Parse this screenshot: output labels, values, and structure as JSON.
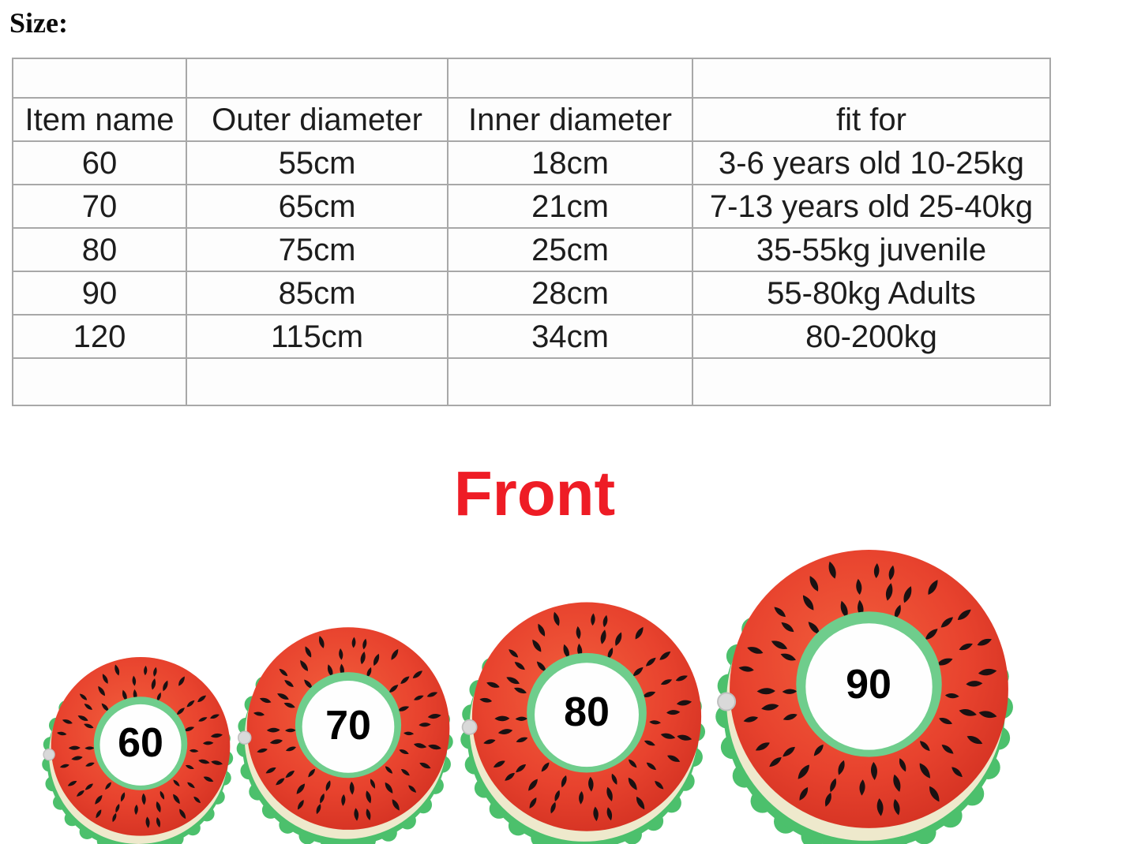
{
  "heading": "Size:",
  "size_table": {
    "headers": [
      "Item name",
      "Outer diameter",
      "Inner diameter",
      "fit for"
    ],
    "rows": [
      [
        "60",
        "55cm",
        "18cm",
        "3-6 years old 10-25kg"
      ],
      [
        "70",
        "65cm",
        "21cm",
        "7-13 years old 25-40kg"
      ],
      [
        "80",
        "75cm",
        "25cm",
        "35-55kg juvenile"
      ],
      [
        "90",
        "85cm",
        "28cm",
        "55-80kg Adults"
      ],
      [
        "120",
        "115cm",
        "34cm",
        "80-200kg"
      ]
    ]
  },
  "front": {
    "heading": "Front",
    "color": "#ee1c25"
  },
  "rings": [
    {
      "label": "60"
    },
    {
      "label": "70"
    },
    {
      "label": "80"
    },
    {
      "label": "90"
    }
  ],
  "colors": {
    "melon_red_light": "#f2603d",
    "melon_red": "#e8432e",
    "melon_red_dark": "#d33122",
    "rind_green": "#4cc06c",
    "rind_cream": "#eee9cc",
    "hole_rim_green": "#6fcd8c",
    "hole_white": "#fefefe",
    "seed_black": "#1a1112",
    "valve_gray": "#d9d9d9",
    "table_line": "#a8a8a8",
    "table_text": "#1d1d1d"
  }
}
